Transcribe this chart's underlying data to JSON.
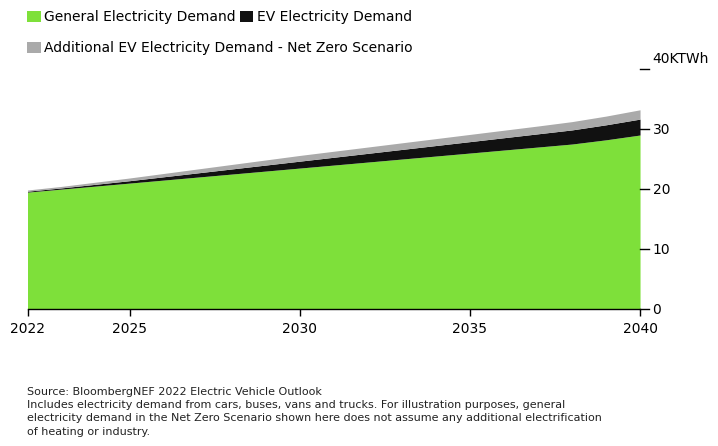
{
  "years": [
    2022,
    2023,
    2024,
    2025,
    2026,
    2027,
    2028,
    2029,
    2030,
    2031,
    2032,
    2033,
    2034,
    2035,
    2036,
    2037,
    2038,
    2039,
    2040
  ],
  "general_demand": [
    19.5,
    20.0,
    20.5,
    21.0,
    21.5,
    22.0,
    22.5,
    23.0,
    23.5,
    24.0,
    24.5,
    25.0,
    25.5,
    26.0,
    26.5,
    27.0,
    27.5,
    28.2,
    29.0
  ],
  "ev_demand": [
    0.15,
    0.2,
    0.3,
    0.4,
    0.55,
    0.7,
    0.85,
    1.0,
    1.15,
    1.3,
    1.45,
    1.6,
    1.75,
    1.9,
    2.05,
    2.2,
    2.35,
    2.5,
    2.65
  ],
  "ev_netzero_additional": [
    0.2,
    0.25,
    0.35,
    0.45,
    0.55,
    0.65,
    0.75,
    0.85,
    0.95,
    1.0,
    1.05,
    1.1,
    1.15,
    1.2,
    1.25,
    1.3,
    1.38,
    1.45,
    1.55
  ],
  "color_general": "#7EE03A",
  "color_ev": "#111111",
  "color_netzero": "#aaaaaa",
  "ylim": [
    0,
    40
  ],
  "ytick_vals": [
    0,
    10,
    20,
    30
  ],
  "xlim": [
    2022,
    2040
  ],
  "xticks": [
    2022,
    2025,
    2030,
    2035,
    2040
  ],
  "ylabel_top": "40KTWh",
  "legend_general": "General Electricity Demand",
  "legend_ev": "EV Electricity Demand",
  "legend_netzero": "Additional EV Electricity Demand - Net Zero Scenario",
  "source_text": "Source: BloombergNEF 2022 Electric Vehicle Outlook\nIncludes electricity demand from cars, buses, vans and trucks. For illustration purposes, general\nelectricity demand in the Net Zero Scenario shown here does not assume any additional electrification\nof heating or industry.",
  "bg_color": "#ffffff",
  "tick_label_fontsize": 10,
  "legend_fontsize": 10,
  "source_fontsize": 8
}
